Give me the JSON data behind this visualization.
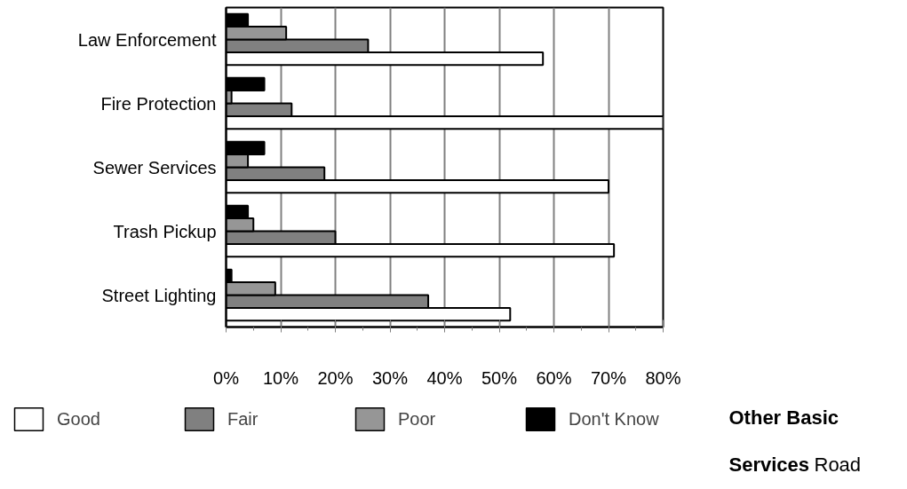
{
  "chart_data": {
    "type": "bar",
    "orientation": "horizontal",
    "categories": [
      "Law Enforcement",
      "Fire Protection",
      "Sewer Services",
      "Trash Pickup",
      "Street Lighting"
    ],
    "series": [
      {
        "name": "Good",
        "color": "#ffffff",
        "values": [
          58,
          80,
          70,
          71,
          52
        ]
      },
      {
        "name": "Fair",
        "color": "#808080",
        "values": [
          26,
          12,
          18,
          20,
          37
        ]
      },
      {
        "name": "Poor",
        "color": "#969696",
        "values": [
          11,
          1,
          4,
          5,
          9
        ]
      },
      {
        "name": "Don't Know",
        "color": "#000000",
        "values": [
          4,
          7,
          7,
          4,
          1
        ]
      }
    ],
    "xlim": [
      0,
      80
    ],
    "xticks": [
      {
        "value": 0,
        "label": "0%"
      },
      {
        "value": 10,
        "label": "10%"
      },
      {
        "value": 20,
        "label": "20%"
      },
      {
        "value": 30,
        "label": "30%"
      },
      {
        "value": 40,
        "label": "40%"
      },
      {
        "value": 50,
        "label": "50%"
      },
      {
        "value": 60,
        "label": "60%"
      },
      {
        "value": 70,
        "label": "70%"
      },
      {
        "value": 80,
        "label": "80%"
      }
    ],
    "grid": "x",
    "legend": "bottom",
    "annotations": [
      "Other Basic Services",
      "Road"
    ]
  }
}
